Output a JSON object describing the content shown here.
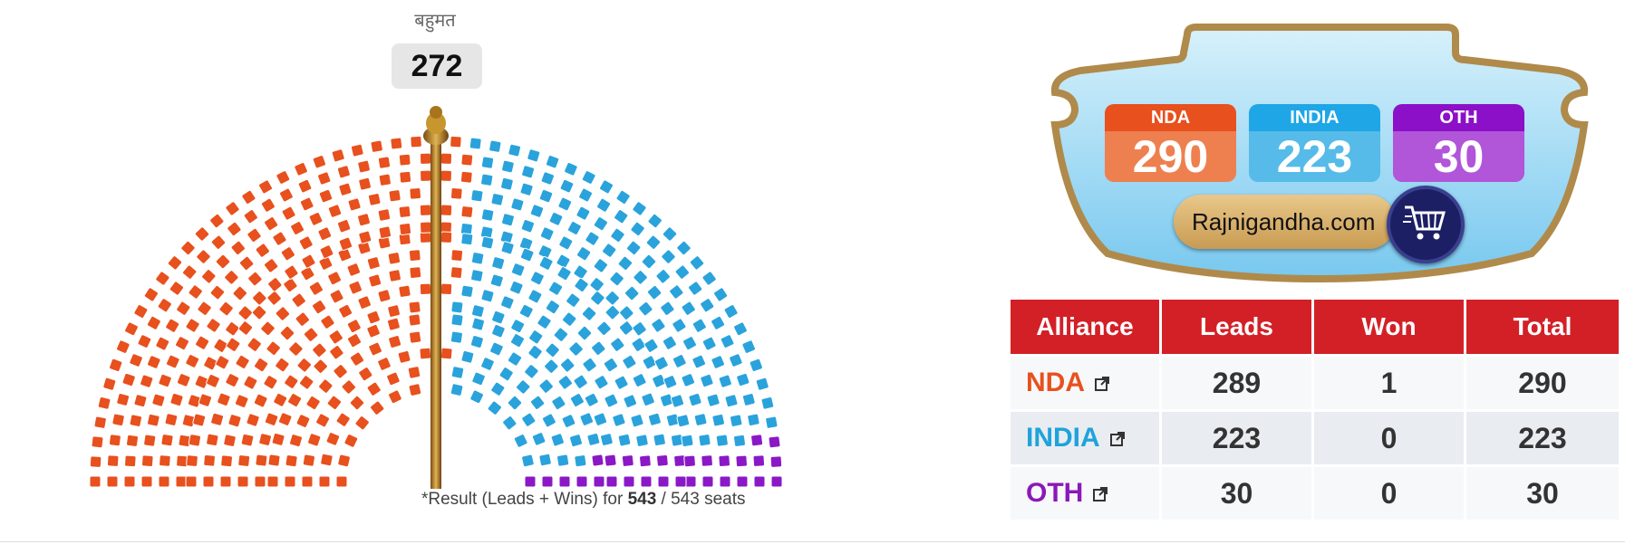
{
  "parliament": {
    "majority_label": "बहुमत",
    "majority_value": "272",
    "footnote_prefix": "*Result (Leads + Wins) for ",
    "footnote_declared": "543",
    "footnote_suffix": " / 543 seats",
    "seat_counts": {
      "NDA": 290,
      "INDIA": 223,
      "OTH": 30
    },
    "colors": {
      "NDA": "#e8501d",
      "INDIA": "#2aa3dc",
      "OTH": "#8b18c6"
    }
  },
  "banner": {
    "chips": [
      {
        "label": "NDA",
        "value": "290",
        "head_color": "#e8501d",
        "body_color": "#ee8050"
      },
      {
        "label": "INDIA",
        "value": "223",
        "head_color": "#1fa6e6",
        "body_color": "#56bbe8"
      },
      {
        "label": "OTH",
        "value": "30",
        "head_color": "#8b10c8",
        "body_color": "#b155d9"
      }
    ],
    "brand": "Rajnigandha.com",
    "cart_icon": "shopping-cart-icon"
  },
  "table": {
    "headers": [
      "Alliance",
      "Leads",
      "Won",
      "Total"
    ],
    "rows": [
      {
        "alliance": "NDA",
        "leads": "289",
        "won": "1",
        "total": "290",
        "color": "#e8501d"
      },
      {
        "alliance": "INDIA",
        "leads": "223",
        "won": "0",
        "total": "223",
        "color": "#1fa3dc"
      },
      {
        "alliance": "OTH",
        "leads": "30",
        "won": "0",
        "total": "30",
        "color": "#8b18b8"
      }
    ],
    "link_icon": "external-link-icon",
    "header_color": "#d32027"
  }
}
